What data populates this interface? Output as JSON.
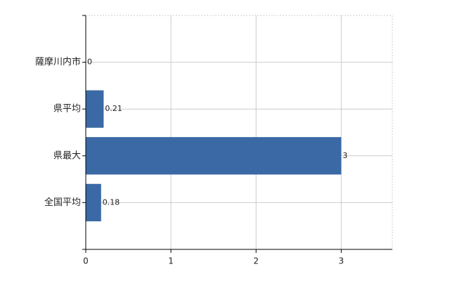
{
  "chart_data": {
    "type": "bar",
    "orientation": "horizontal",
    "categories": [
      "薩摩川内市",
      "県平均",
      "県最大",
      "全国平均"
    ],
    "values": [
      0,
      0.21,
      3,
      0.18
    ],
    "color": "#3b69a5",
    "xlim": [
      0,
      3.6
    ],
    "xticks": [
      0,
      1,
      2,
      3
    ],
    "grid": true
  }
}
